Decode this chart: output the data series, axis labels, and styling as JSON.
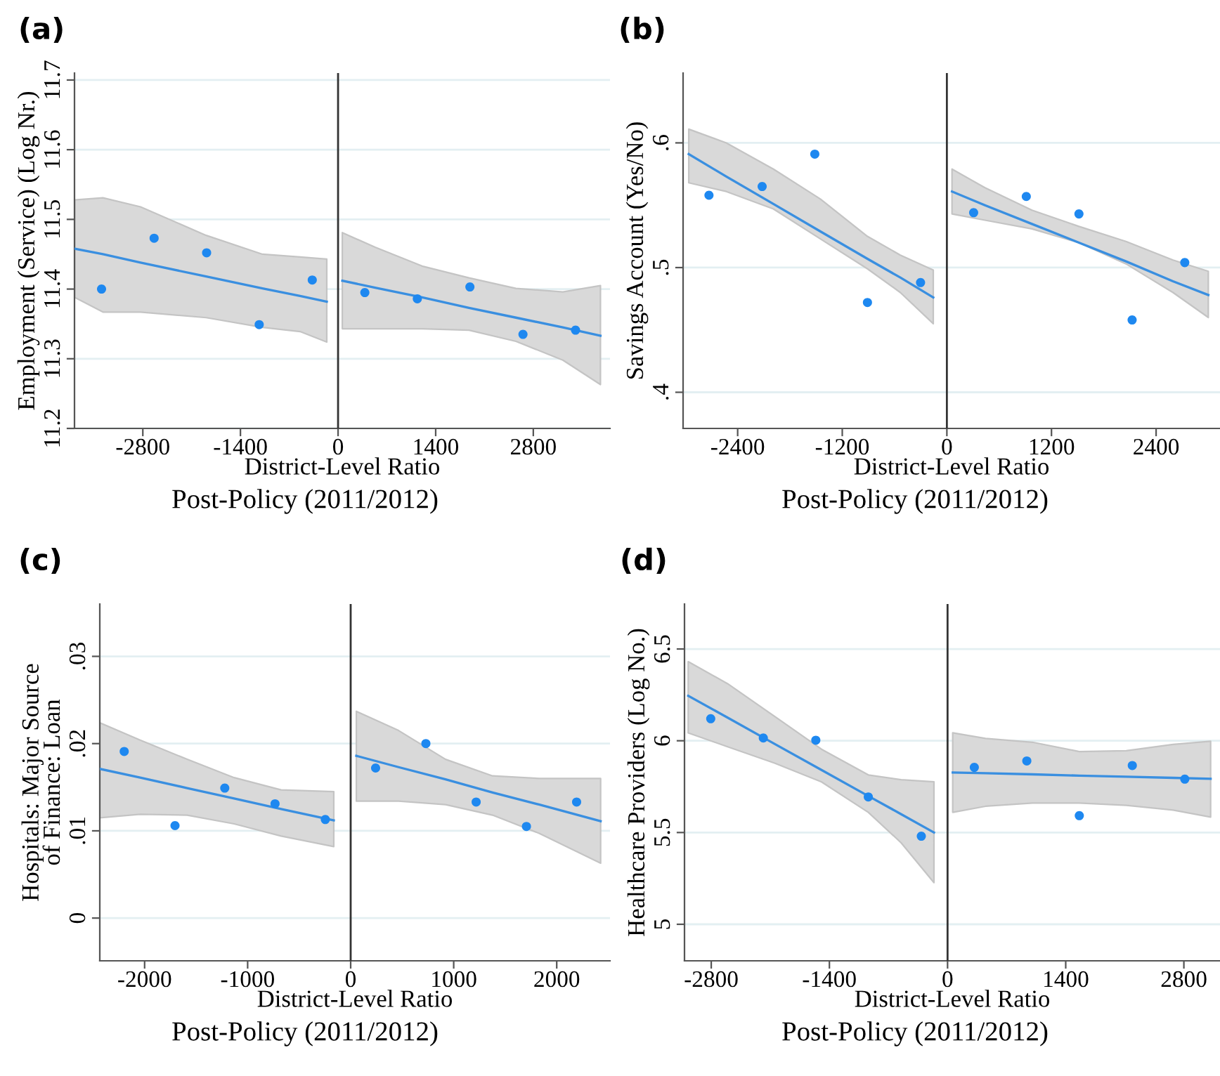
{
  "chart_data": [
    {
      "type": "scatter",
      "title": "(a)",
      "xlabel": "District-Level Ratio",
      "ylabel": "Employment (Service) (Log Nr.)",
      "annotations": [
        "Post-Policy (2011/2012)"
      ],
      "xlim": [
        -3780,
        3900
      ],
      "ylim": [
        11.2,
        11.71
      ],
      "xticks": [
        -2800,
        -1400,
        0,
        1400,
        2800
      ],
      "yticks": [
        11.2,
        11.3,
        11.4,
        11.5,
        11.6,
        11.7
      ],
      "grid": "y",
      "ref_lines": [
        {
          "axis": "x",
          "value": 0,
          "color": "#333333"
        }
      ],
      "series": [
        {
          "marker": "circle",
          "color": "#1e88f0",
          "x": [
            -3392,
            -2638,
            -1885,
            -1131,
            -370,
            384,
            1137,
            1891,
            2652,
            3406
          ],
          "values": [
            11.4,
            11.473,
            11.452,
            11.349,
            11.413,
            11.395,
            11.386,
            11.403,
            11.335,
            11.341
          ]
        },
        {
          "type": "line",
          "color": "#3a8fe0",
          "line_style": "solid",
          "x": [
            -3776,
            -3372,
            -2833,
            -1891,
            -1084,
            -545,
            -162
          ],
          "values": [
            11.458,
            11.45,
            11.438,
            11.418,
            11.401,
            11.39,
            11.382
          ],
          "lower": [
            11.388,
            11.367,
            11.367,
            11.359,
            11.345,
            11.339,
            11.324
          ],
          "upper": [
            11.528,
            11.531,
            11.518,
            11.477,
            11.45,
            11.446,
            11.443
          ]
        },
        {
          "type": "line",
          "color": "#3a8fe0",
          "line_style": "solid",
          "x": [
            61,
            532,
            1205,
            1878,
            2551,
            3224,
            3763
          ],
          "values": [
            11.412,
            11.402,
            11.388,
            11.373,
            11.359,
            11.345,
            11.333
          ],
          "lower": [
            11.343,
            11.343,
            11.343,
            11.341,
            11.325,
            11.298,
            11.263
          ],
          "upper": [
            11.481,
            11.46,
            11.433,
            11.416,
            11.401,
            11.396,
            11.405
          ]
        }
      ]
    },
    {
      "type": "scatter",
      "title": "(b)",
      "xlabel": "District-Level Ratio",
      "ylabel": "Savings Account (Yes/No)",
      "annotations": [
        "Post-Policy (2011/2012)"
      ],
      "xlim": [
        -3026,
        3133
      ],
      "ylim": [
        0.371,
        0.656
      ],
      "xticks": [
        -2400,
        -1200,
        0,
        1200,
        2400
      ],
      "yticks": [
        {
          "value": 0.4,
          "label": ".4"
        },
        {
          "value": 0.5,
          "label": ".5"
        },
        {
          "value": 0.6,
          "label": ".6"
        }
      ],
      "grid": "y",
      "ref_lines": [
        {
          "axis": "x",
          "value": 0,
          "color": "#333333"
        }
      ],
      "series": [
        {
          "marker": "circle",
          "color": "#1e88f0",
          "x": [
            -2729,
            -2119,
            -1515,
            -911,
            -302,
            307,
            911,
            1515,
            2125,
            2729
          ],
          "values": [
            0.558,
            0.565,
            0.591,
            0.472,
            0.488,
            0.544,
            0.557,
            0.543,
            0.458,
            0.504
          ]
        },
        {
          "type": "line",
          "color": "#3a8fe0",
          "line_style": "solid",
          "x": [
            -2961,
            -2530,
            -1990,
            -1451,
            -911,
            -534,
            -156
          ],
          "values": [
            0.591,
            0.573,
            0.551,
            0.529,
            0.507,
            0.492,
            0.476
          ],
          "lower": [
            0.568,
            0.561,
            0.547,
            0.523,
            0.499,
            0.48,
            0.455
          ],
          "upper": [
            0.611,
            0.6,
            0.579,
            0.555,
            0.525,
            0.51,
            0.498
          ]
        },
        {
          "type": "line",
          "color": "#3a8fe0",
          "line_style": "solid",
          "x": [
            59,
            437,
            976,
            1515,
            2054,
            2594,
            2999
          ],
          "values": [
            0.561,
            0.55,
            0.535,
            0.52,
            0.505,
            0.489,
            0.478
          ],
          "lower": [
            0.543,
            0.538,
            0.531,
            0.52,
            0.503,
            0.48,
            0.46
          ],
          "upper": [
            0.579,
            0.564,
            0.546,
            0.533,
            0.521,
            0.506,
            0.497
          ]
        }
      ]
    },
    {
      "type": "scatter",
      "title": "(c)",
      "xlabel": "District-Level Ratio",
      "ylabel": "Hospitals: Major Source\nof Finance: Loan",
      "annotations": [
        "Post-Policy (2011/2012)"
      ],
      "xlim": [
        -2435,
        2517
      ],
      "ylim": [
        -0.0049,
        0.036
      ],
      "xticks": [
        -2000,
        -1000,
        0,
        1000,
        2000
      ],
      "yticks": [
        0,
        {
          "value": 0.01,
          "label": ".01"
        },
        {
          "value": 0.02,
          "label": ".02"
        },
        {
          "value": 0.03,
          "label": ".03"
        }
      ],
      "grid": "y",
      "ref_lines": [
        {
          "axis": "x",
          "value": 0,
          "color": "#333333"
        }
      ],
      "series": [
        {
          "marker": "circle",
          "color": "#1e88f0",
          "x": [
            -2198,
            -1705,
            -1222,
            -734,
            -246,
            242,
            730,
            1218,
            1706,
            2193
          ],
          "values": [
            0.0191,
            0.0106,
            0.0149,
            0.0131,
            0.0113,
            0.0172,
            0.02,
            0.0133,
            0.0105,
            0.0133
          ]
        },
        {
          "type": "line",
          "color": "#3a8fe0",
          "line_style": "solid",
          "x": [
            -2435,
            -2043,
            -1587,
            -1131,
            -675,
            -164
          ],
          "values": [
            0.0171,
            0.0161,
            0.0149,
            0.0137,
            0.0125,
            0.0112
          ],
          "lower": [
            0.0115,
            0.0119,
            0.0118,
            0.0108,
            0.0094,
            0.0082
          ],
          "upper": [
            0.0224,
            0.0204,
            0.0182,
            0.0161,
            0.0147,
            0.0145
          ]
        },
        {
          "type": "line",
          "color": "#3a8fe0",
          "line_style": "solid",
          "x": [
            55,
            465,
            921,
            1377,
            1833,
            2426
          ],
          "values": [
            0.0186,
            0.0173,
            0.0159,
            0.0144,
            0.013,
            0.0111
          ],
          "lower": [
            0.0134,
            0.0134,
            0.013,
            0.0118,
            0.0097,
            0.0063
          ],
          "upper": [
            0.0237,
            0.0215,
            0.0182,
            0.0163,
            0.016,
            0.016
          ]
        }
      ]
    },
    {
      "type": "scatter",
      "title": "(d)",
      "xlabel": "District-Level Ratio",
      "ylabel": "Healthcare Providers (Log No.)",
      "annotations": [
        "Post-Policy (2011/2012)"
      ],
      "xlim": [
        -3117,
        3228
      ],
      "ylim": [
        4.801,
        6.745
      ],
      "xticks": [
        -2800,
        -1400,
        0,
        1400,
        2800
      ],
      "yticks": [
        5,
        5.5,
        6,
        6.5
      ],
      "grid": "y",
      "ref_lines": [
        {
          "axis": "x",
          "value": 0,
          "color": "#333333"
        }
      ],
      "series": [
        {
          "marker": "circle",
          "color": "#1e88f0",
          "x": [
            -2806,
            -2183,
            -1561,
            -939,
            -311,
            317,
            939,
            1561,
            2189,
            2811
          ],
          "values": [
            6.12,
            6.015,
            6.003,
            5.694,
            5.48,
            5.855,
            5.89,
            5.592,
            5.865,
            5.791
          ]
        },
        {
          "type": "line",
          "color": "#3a8fe0",
          "line_style": "solid",
          "x": [
            -3073,
            -2606,
            -2050,
            -1494,
            -939,
            -550,
            -161
          ],
          "values": [
            6.245,
            6.126,
            5.983,
            5.841,
            5.699,
            5.6,
            5.5
          ],
          "lower": [
            6.043,
            5.967,
            5.878,
            5.776,
            5.61,
            5.444,
            5.227
          ],
          "upper": [
            6.431,
            6.311,
            6.133,
            5.954,
            5.814,
            5.788,
            5.776
          ]
        },
        {
          "type": "line",
          "color": "#3a8fe0",
          "line_style": "solid",
          "x": [
            61,
            450,
            1006,
            1561,
            2117,
            2672,
            3117
          ],
          "values": [
            5.827,
            5.823,
            5.817,
            5.81,
            5.804,
            5.798,
            5.793
          ],
          "lower": [
            5.61,
            5.643,
            5.661,
            5.661,
            5.648,
            5.622,
            5.584
          ],
          "upper": [
            6.043,
            6.013,
            5.992,
            5.941,
            5.946,
            5.98,
            5.997
          ]
        }
      ]
    }
  ]
}
